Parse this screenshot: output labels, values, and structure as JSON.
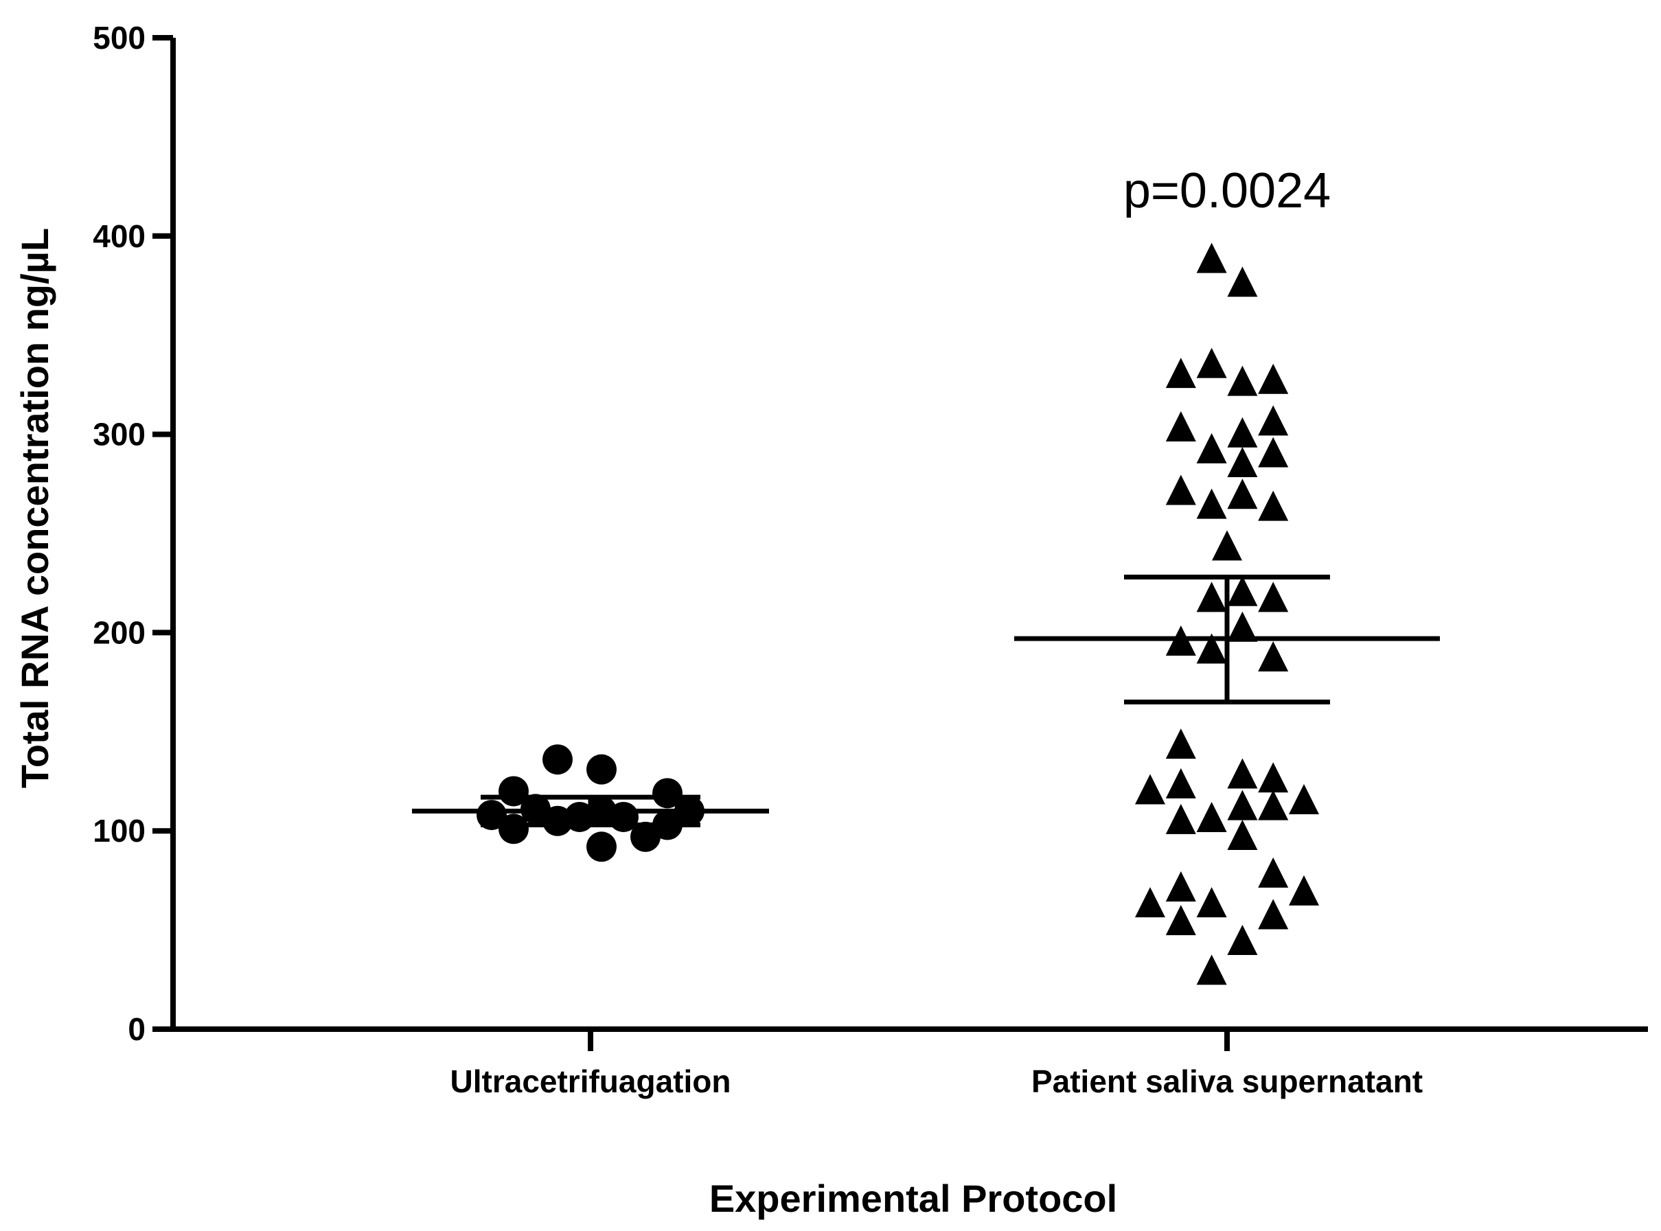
{
  "chart_data": {
    "type": "scatter",
    "title": "",
    "xlabel": "Experimental Protocol",
    "ylabel": "Total RNA concentration  ng/µL",
    "ylim": [
      0,
      500
    ],
    "yticks": [
      0,
      100,
      200,
      300,
      400,
      500
    ],
    "grid": false,
    "legend": "none",
    "annotation": "p=0.0024",
    "categories": [
      "Ultracetrifuagation",
      "Patient saliva supernatant"
    ],
    "groups": [
      {
        "category": "Ultracetrifuagation",
        "marker": "circle",
        "color": "#000000",
        "mean": 110,
        "error_upper": 117,
        "error_lower": 103,
        "points": [
          {
            "x": -0.45,
            "y": 108
          },
          {
            "x": -0.35,
            "y": 120
          },
          {
            "x": -0.35,
            "y": 101
          },
          {
            "x": -0.25,
            "y": 111
          },
          {
            "x": -0.15,
            "y": 136
          },
          {
            "x": -0.15,
            "y": 105
          },
          {
            "x": -0.05,
            "y": 107
          },
          {
            "x": 0.05,
            "y": 131
          },
          {
            "x": 0.05,
            "y": 110
          },
          {
            "x": 0.05,
            "y": 92
          },
          {
            "x": 0.15,
            "y": 107
          },
          {
            "x": 0.25,
            "y": 97
          },
          {
            "x": 0.35,
            "y": 119
          },
          {
            "x": 0.35,
            "y": 103
          },
          {
            "x": 0.45,
            "y": 110
          }
        ]
      },
      {
        "category": "Patient saliva supernatant",
        "marker": "triangle",
        "color": "#000000",
        "mean": 197,
        "error_upper": 228,
        "error_lower": 165,
        "points": [
          {
            "x": -0.35,
            "y": 121
          },
          {
            "x": -0.35,
            "y": 64
          },
          {
            "x": -0.21,
            "y": 331
          },
          {
            "x": -0.21,
            "y": 304
          },
          {
            "x": -0.21,
            "y": 272
          },
          {
            "x": -0.21,
            "y": 196
          },
          {
            "x": -0.21,
            "y": 144
          },
          {
            "x": -0.21,
            "y": 124
          },
          {
            "x": -0.21,
            "y": 106
          },
          {
            "x": -0.21,
            "y": 72
          },
          {
            "x": -0.21,
            "y": 55
          },
          {
            "x": -0.07,
            "y": 389
          },
          {
            "x": -0.07,
            "y": 336
          },
          {
            "x": -0.07,
            "y": 293
          },
          {
            "x": -0.07,
            "y": 265
          },
          {
            "x": -0.07,
            "y": 218
          },
          {
            "x": -0.07,
            "y": 192
          },
          {
            "x": -0.07,
            "y": 107
          },
          {
            "x": -0.07,
            "y": 64
          },
          {
            "x": -0.07,
            "y": 30
          },
          {
            "x": 0.0,
            "y": 244
          },
          {
            "x": 0.07,
            "y": 377
          },
          {
            "x": 0.07,
            "y": 327
          },
          {
            "x": 0.07,
            "y": 301
          },
          {
            "x": 0.07,
            "y": 286
          },
          {
            "x": 0.07,
            "y": 270
          },
          {
            "x": 0.07,
            "y": 221
          },
          {
            "x": 0.07,
            "y": 203
          },
          {
            "x": 0.07,
            "y": 129
          },
          {
            "x": 0.07,
            "y": 113
          },
          {
            "x": 0.07,
            "y": 98
          },
          {
            "x": 0.07,
            "y": 45
          },
          {
            "x": 0.21,
            "y": 328
          },
          {
            "x": 0.21,
            "y": 307
          },
          {
            "x": 0.21,
            "y": 291
          },
          {
            "x": 0.21,
            "y": 264
          },
          {
            "x": 0.21,
            "y": 218
          },
          {
            "x": 0.21,
            "y": 188
          },
          {
            "x": 0.21,
            "y": 127
          },
          {
            "x": 0.21,
            "y": 113
          },
          {
            "x": 0.21,
            "y": 79
          },
          {
            "x": 0.21,
            "y": 58
          },
          {
            "x": 0.35,
            "y": 116
          },
          {
            "x": 0.35,
            "y": 70
          }
        ]
      }
    ]
  }
}
